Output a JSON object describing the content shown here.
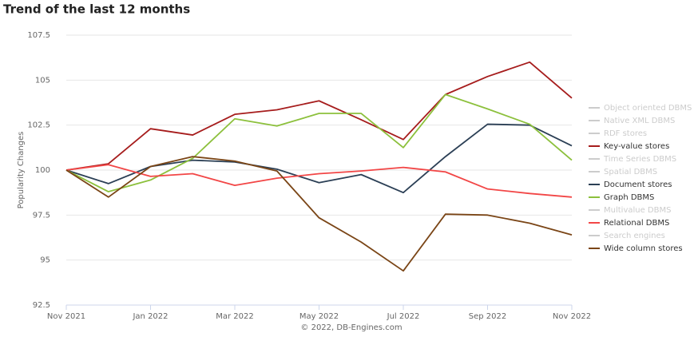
{
  "chart_data": {
    "type": "line",
    "title": "Trend of the last 12 months",
    "y_label": "Popularity Changes",
    "credit": "© 2022, DB-Engines.com",
    "categories": [
      "Nov 2021",
      null,
      "Jan 2022",
      null,
      "Mar 2022",
      null,
      "May 2022",
      null,
      "Jul 2022",
      null,
      "Sep 2022",
      null,
      "Nov 2022"
    ],
    "ylim": [
      92.5,
      107.5
    ],
    "yticks": [
      92.5,
      95,
      97.5,
      100,
      102.5,
      105,
      107.5
    ],
    "grid": true,
    "legend": "right",
    "series": [
      {
        "name": "Object oriented DBMS",
        "color": "#cccccc",
        "visible": false
      },
      {
        "name": "Native XML DBMS",
        "color": "#cccccc",
        "visible": false
      },
      {
        "name": "RDF stores",
        "color": "#cccccc",
        "visible": false
      },
      {
        "name": "Key-value stores",
        "color": "#a61c1c",
        "visible": true,
        "values": [
          100,
          100.35,
          102.3,
          101.95,
          103.1,
          103.35,
          103.85,
          102.8,
          101.7,
          104.2,
          105.2,
          106,
          104
        ]
      },
      {
        "name": "Time Series DBMS",
        "color": "#cccccc",
        "visible": false
      },
      {
        "name": "Spatial DBMS",
        "color": "#cccccc",
        "visible": false
      },
      {
        "name": "Document stores",
        "color": "#2b3f55",
        "visible": true,
        "values": [
          100,
          99.25,
          100.2,
          100.55,
          100.45,
          100.05,
          99.3,
          99.75,
          98.75,
          100.75,
          102.55,
          102.5,
          101.35
        ]
      },
      {
        "name": "Graph DBMS",
        "color": "#8cc03c",
        "visible": true,
        "values": [
          100,
          98.8,
          99.45,
          100.65,
          102.85,
          102.45,
          103.15,
          103.15,
          101.25,
          104.2,
          103.4,
          102.55,
          100.55
        ]
      },
      {
        "name": "Multivalue DBMS",
        "color": "#cccccc",
        "visible": false
      },
      {
        "name": "Relational DBMS",
        "color": "#f24646",
        "visible": true,
        "values": [
          100,
          100.3,
          99.65,
          99.8,
          99.15,
          99.55,
          99.8,
          99.95,
          100.15,
          99.9,
          98.95,
          98.7,
          98.5
        ]
      },
      {
        "name": "Search engines",
        "color": "#cccccc",
        "visible": false
      },
      {
        "name": "Wide column stores",
        "color": "#7a4516",
        "visible": true,
        "values": [
          100,
          98.5,
          100.2,
          100.75,
          100.5,
          99.95,
          97.35,
          96.0,
          94.4,
          97.55,
          97.5,
          97.05,
          96.4
        ]
      }
    ]
  }
}
